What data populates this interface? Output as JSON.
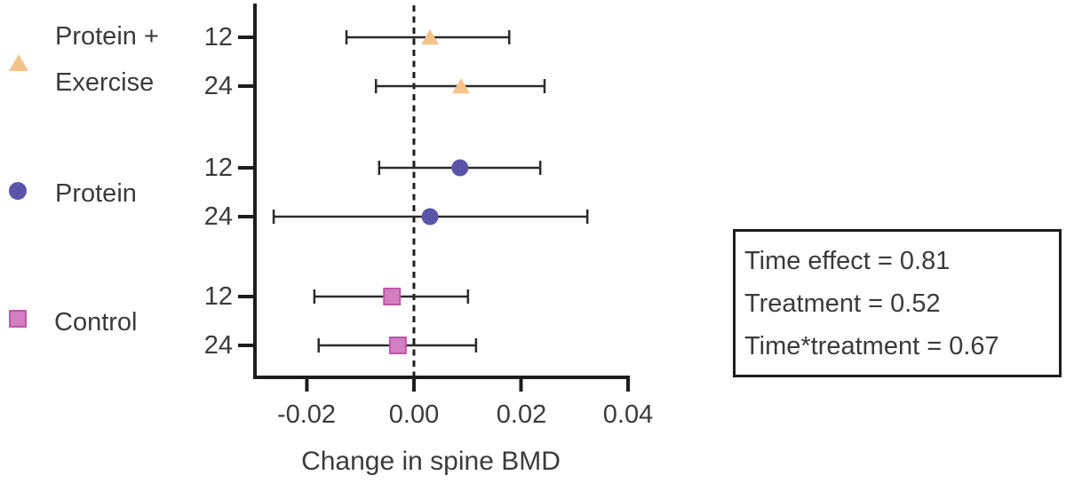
{
  "chart_data": {
    "type": "scatter",
    "subtype": "forest-plot-with-error-bars",
    "title": "",
    "xlabel": "Change in spine BMD",
    "ylabel": "",
    "xlim": [
      -0.0297,
      0.04
    ],
    "grid": false,
    "legend_position": "left",
    "zero_reference_line": {
      "value": 0.0,
      "style": "dashed"
    },
    "x_ticks": [
      {
        "value": -0.02,
        "label": "-0.02"
      },
      {
        "value": 0.0,
        "label": "0.00"
      },
      {
        "value": 0.02,
        "label": "0.02"
      },
      {
        "value": 0.04,
        "label": "0.04"
      }
    ],
    "groups": [
      {
        "name": "Protein + Exercise",
        "label_lines": [
          "Protein +",
          "Exercise"
        ],
        "marker": "triangle",
        "color": "#F5C28B",
        "edge_color": "#F5C28B",
        "points": [
          {
            "time_months": "12",
            "mean": 0.003,
            "ci_low": -0.0126,
            "ci_high": 0.0178
          },
          {
            "time_months": "24",
            "mean": 0.0088,
            "ci_low": -0.0071,
            "ci_high": 0.0244
          }
        ]
      },
      {
        "name": "Protein",
        "label_lines": [
          "Protein"
        ],
        "marker": "circle",
        "color": "#5A55A8",
        "edge_color": "#5A55A8",
        "points": [
          {
            "time_months": "12",
            "mean": 0.0086,
            "ci_low": -0.0065,
            "ci_high": 0.0236
          },
          {
            "time_months": "24",
            "mean": 0.003,
            "ci_low": -0.0262,
            "ci_high": 0.0324
          }
        ]
      },
      {
        "name": "Control",
        "label_lines": [
          "Control"
        ],
        "marker": "square",
        "color": "#D27EC1",
        "edge_color": "#BE58A6",
        "points": [
          {
            "time_months": "12",
            "mean": -0.0041,
            "ci_low": -0.0186,
            "ci_high": 0.0101
          },
          {
            "time_months": "24",
            "mean": -0.003,
            "ci_low": -0.0178,
            "ci_high": 0.0116
          }
        ]
      }
    ],
    "annotations": {
      "stats_box_lines": [
        "Time effect = 0.81",
        "Treatment = 0.52",
        "Time*treatment = 0.67"
      ]
    },
    "colors": {
      "axis": "#1d1d1d",
      "error_bar": "#2b2b2b",
      "text": "#3b3b3b",
      "background": "#ffffff"
    }
  }
}
